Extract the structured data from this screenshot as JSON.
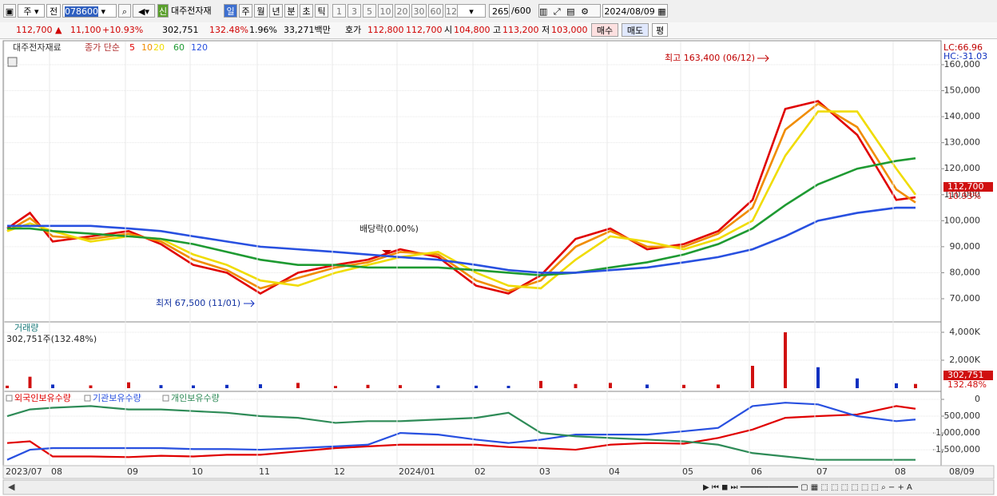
{
  "toolbar": {
    "market": "주",
    "mode": "전",
    "code": "078600",
    "name": "대주전자재",
    "new": "신",
    "periods": [
      "일",
      "주",
      "월",
      "년",
      "분",
      "초",
      "틱"
    ],
    "units": [
      "1",
      "3",
      "5",
      "10",
      "20",
      "30",
      "60",
      "120"
    ],
    "count": "265",
    "max": "/600",
    "date": "2024/08/09"
  },
  "info": {
    "price": "112,700 ▲",
    "change": "11,100",
    "rate": "+10.93%",
    "volume": "302,751",
    "volume_rate": "132.48%",
    "turnover": "1.96%",
    "amount": "33,271백만",
    "ask_label": "호가",
    "ask": "112,800",
    "bid": "112,700",
    "open_label": "시",
    "open": "104,800",
    "high_label": "고",
    "high": "113,200",
    "low_label": "저",
    "low": "103,000",
    "buy": "매수",
    "sell": "매도",
    "avg": "평"
  },
  "chart_data": [
    {
      "type": "line",
      "title": "대주전자재료",
      "legend_title": "종가 단순",
      "categories": [
        "2023/07",
        null,
        "08",
        null,
        "09",
        null,
        "10",
        null,
        "11",
        null,
        "12",
        null,
        "2024/01",
        null,
        "02",
        null,
        "03",
        null,
        "04",
        null,
        "05",
        null,
        "06",
        null,
        "07",
        null,
        "08",
        null
      ],
      "last_date": "08/09",
      "series": [
        {
          "name": "5",
          "color": "#e00000",
          "values": [
            97000,
            103000,
            92000,
            94000,
            96000,
            91000,
            83000,
            80000,
            72000,
            80000,
            83000,
            85000,
            89000,
            86000,
            75000,
            72000,
            79000,
            93000,
            97000,
            89000,
            91000,
            96000,
            108000,
            143000,
            146000,
            133000,
            108000,
            109000
          ]
        },
        {
          "name": "10",
          "color": "#f08c00",
          "values": [
            96000,
            101000,
            94000,
            93000,
            95000,
            92000,
            85000,
            81000,
            74000,
            78000,
            82000,
            84000,
            88000,
            87000,
            77000,
            73000,
            77000,
            90000,
            96000,
            90000,
            90000,
            95000,
            105000,
            135000,
            145000,
            136000,
            112000,
            107000
          ]
        },
        {
          "name": "20",
          "color": "#f0dc00",
          "values": [
            96000,
            99000,
            96000,
            92000,
            94000,
            93000,
            87000,
            83000,
            77000,
            75000,
            80000,
            83000,
            86000,
            88000,
            80000,
            75000,
            74000,
            85000,
            94000,
            92000,
            89000,
            93000,
            100000,
            125000,
            142000,
            142000,
            120000,
            110000
          ]
        },
        {
          "name": "60",
          "color": "#1e9a32",
          "values": [
            97000,
            97000,
            96000,
            95000,
            94000,
            93000,
            91000,
            88000,
            85000,
            83000,
            83000,
            82000,
            82000,
            82000,
            81000,
            80000,
            79000,
            80000,
            82000,
            84000,
            87000,
            91000,
            97000,
            106000,
            114000,
            120000,
            123000,
            124000
          ]
        },
        {
          "name": "120",
          "color": "#2850e0",
          "values": [
            98000,
            98000,
            98000,
            98000,
            97000,
            96000,
            94000,
            92000,
            90000,
            89000,
            88000,
            87000,
            86000,
            85000,
            83000,
            81000,
            80000,
            80000,
            81000,
            82000,
            84000,
            86000,
            89000,
            94000,
            100000,
            103000,
            105000,
            105000
          ]
        }
      ],
      "ylim": [
        61400,
        168900
      ],
      "yticks": [
        {
          "value": 70000,
          "label": "70,000"
        },
        {
          "value": 80000,
          "label": "80,000"
        },
        {
          "value": 90000,
          "label": "90,000"
        },
        {
          "value": 100000,
          "label": "100,000"
        },
        {
          "value": 110000,
          "label": "110,000"
        },
        {
          "value": 120000,
          "label": "120,000"
        },
        {
          "value": 130000,
          "label": "130,000"
        },
        {
          "value": 140000,
          "label": "140,000"
        },
        {
          "value": 150000,
          "label": "150,000"
        },
        {
          "value": 160000,
          "label": "160,000"
        }
      ],
      "grid": true,
      "high_note": "최고 163,400 (06/12)",
      "low_note": "최저 67,500 (11/01)",
      "dividend_note": "배당락(0.00%)",
      "lc": "LC:66.96",
      "hc": "HC:-31.03",
      "last_price": "112,700",
      "last_rate": "10.93%"
    },
    {
      "type": "bar",
      "title": "거래량",
      "subtitle": "302,751주(132.48%)",
      "values": [
        180,
        820,
        260,
        200,
        420,
        220,
        200,
        240,
        280,
        380,
        160,
        240,
        220,
        200,
        180,
        170,
        520,
        300,
        380,
        260,
        240,
        260,
        1600,
        4000,
        1500,
        700,
        350,
        302.751
      ],
      "colors": [
        "#d01010",
        "#d01010",
        "#1030c0",
        "#d01010",
        "#d01010",
        "#1030c0",
        "#1030c0",
        "#1030c0",
        "#1030c0",
        "#d01010",
        "#d01010",
        "#d01010",
        "#d01010",
        "#1030c0",
        "#1030c0",
        "#1030c0",
        "#d01010",
        "#d01010",
        "#d01010",
        "#1030c0",
        "#d01010",
        "#d01010",
        "#d01010",
        "#d01010",
        "#1030c0",
        "#1030c0",
        "#1030c0",
        "#d01010"
      ],
      "ylim": [
        0,
        4630
      ],
      "yticks": [
        {
          "value": 2000,
          "label": "2,000K"
        },
        {
          "value": 4000,
          "label": "4,000K"
        }
      ],
      "last_label": "302,751",
      "last_rate": "132.48%"
    },
    {
      "type": "line",
      "series": [
        {
          "name": "외국인보유수량",
          "color": "#e00000",
          "values": [
            -1300000,
            -1250000,
            -1700000,
            -1700000,
            -1720000,
            -1680000,
            -1700000,
            -1650000,
            -1650000,
            -1550000,
            -1450000,
            -1400000,
            -1350000,
            -1350000,
            -1350000,
            -1420000,
            -1450000,
            -1500000,
            -1350000,
            -1300000,
            -1320000,
            -1150000,
            -900000,
            -550000,
            -500000,
            -450000,
            -200000,
            -280000
          ]
        },
        {
          "name": "기관보유수량",
          "color": "#2850e0",
          "values": [
            -1800000,
            -1500000,
            -1450000,
            -1450000,
            -1450000,
            -1450000,
            -1480000,
            -1480000,
            -1500000,
            -1450000,
            -1400000,
            -1350000,
            -1000000,
            -1050000,
            -1200000,
            -1300000,
            -1200000,
            -1050000,
            -1050000,
            -1050000,
            -950000,
            -850000,
            -200000,
            -100000,
            -150000,
            -500000,
            -650000,
            -600000
          ]
        },
        {
          "name": "개인보유수량",
          "color": "#2e8b57",
          "values": [
            -500000,
            -300000,
            -250000,
            -200000,
            -300000,
            -300000,
            -350000,
            -400000,
            -500000,
            -550000,
            -700000,
            -650000,
            -650000,
            -600000,
            -550000,
            -400000,
            -1000000,
            -1100000,
            -1150000,
            -1200000,
            -1250000,
            -1350000,
            -1600000,
            -1700000,
            -1800000,
            -1800000,
            -1800000,
            -1800000
          ]
        }
      ],
      "ylim": [
        -1950000,
        190000
      ],
      "yticks": [
        0,
        {
          "value": -500000,
          "label": "-500,000"
        },
        {
          "value": -1000000,
          "label": "-1,000,000"
        },
        {
          "value": -1500000,
          "label": "-1,500,000"
        }
      ]
    }
  ]
}
